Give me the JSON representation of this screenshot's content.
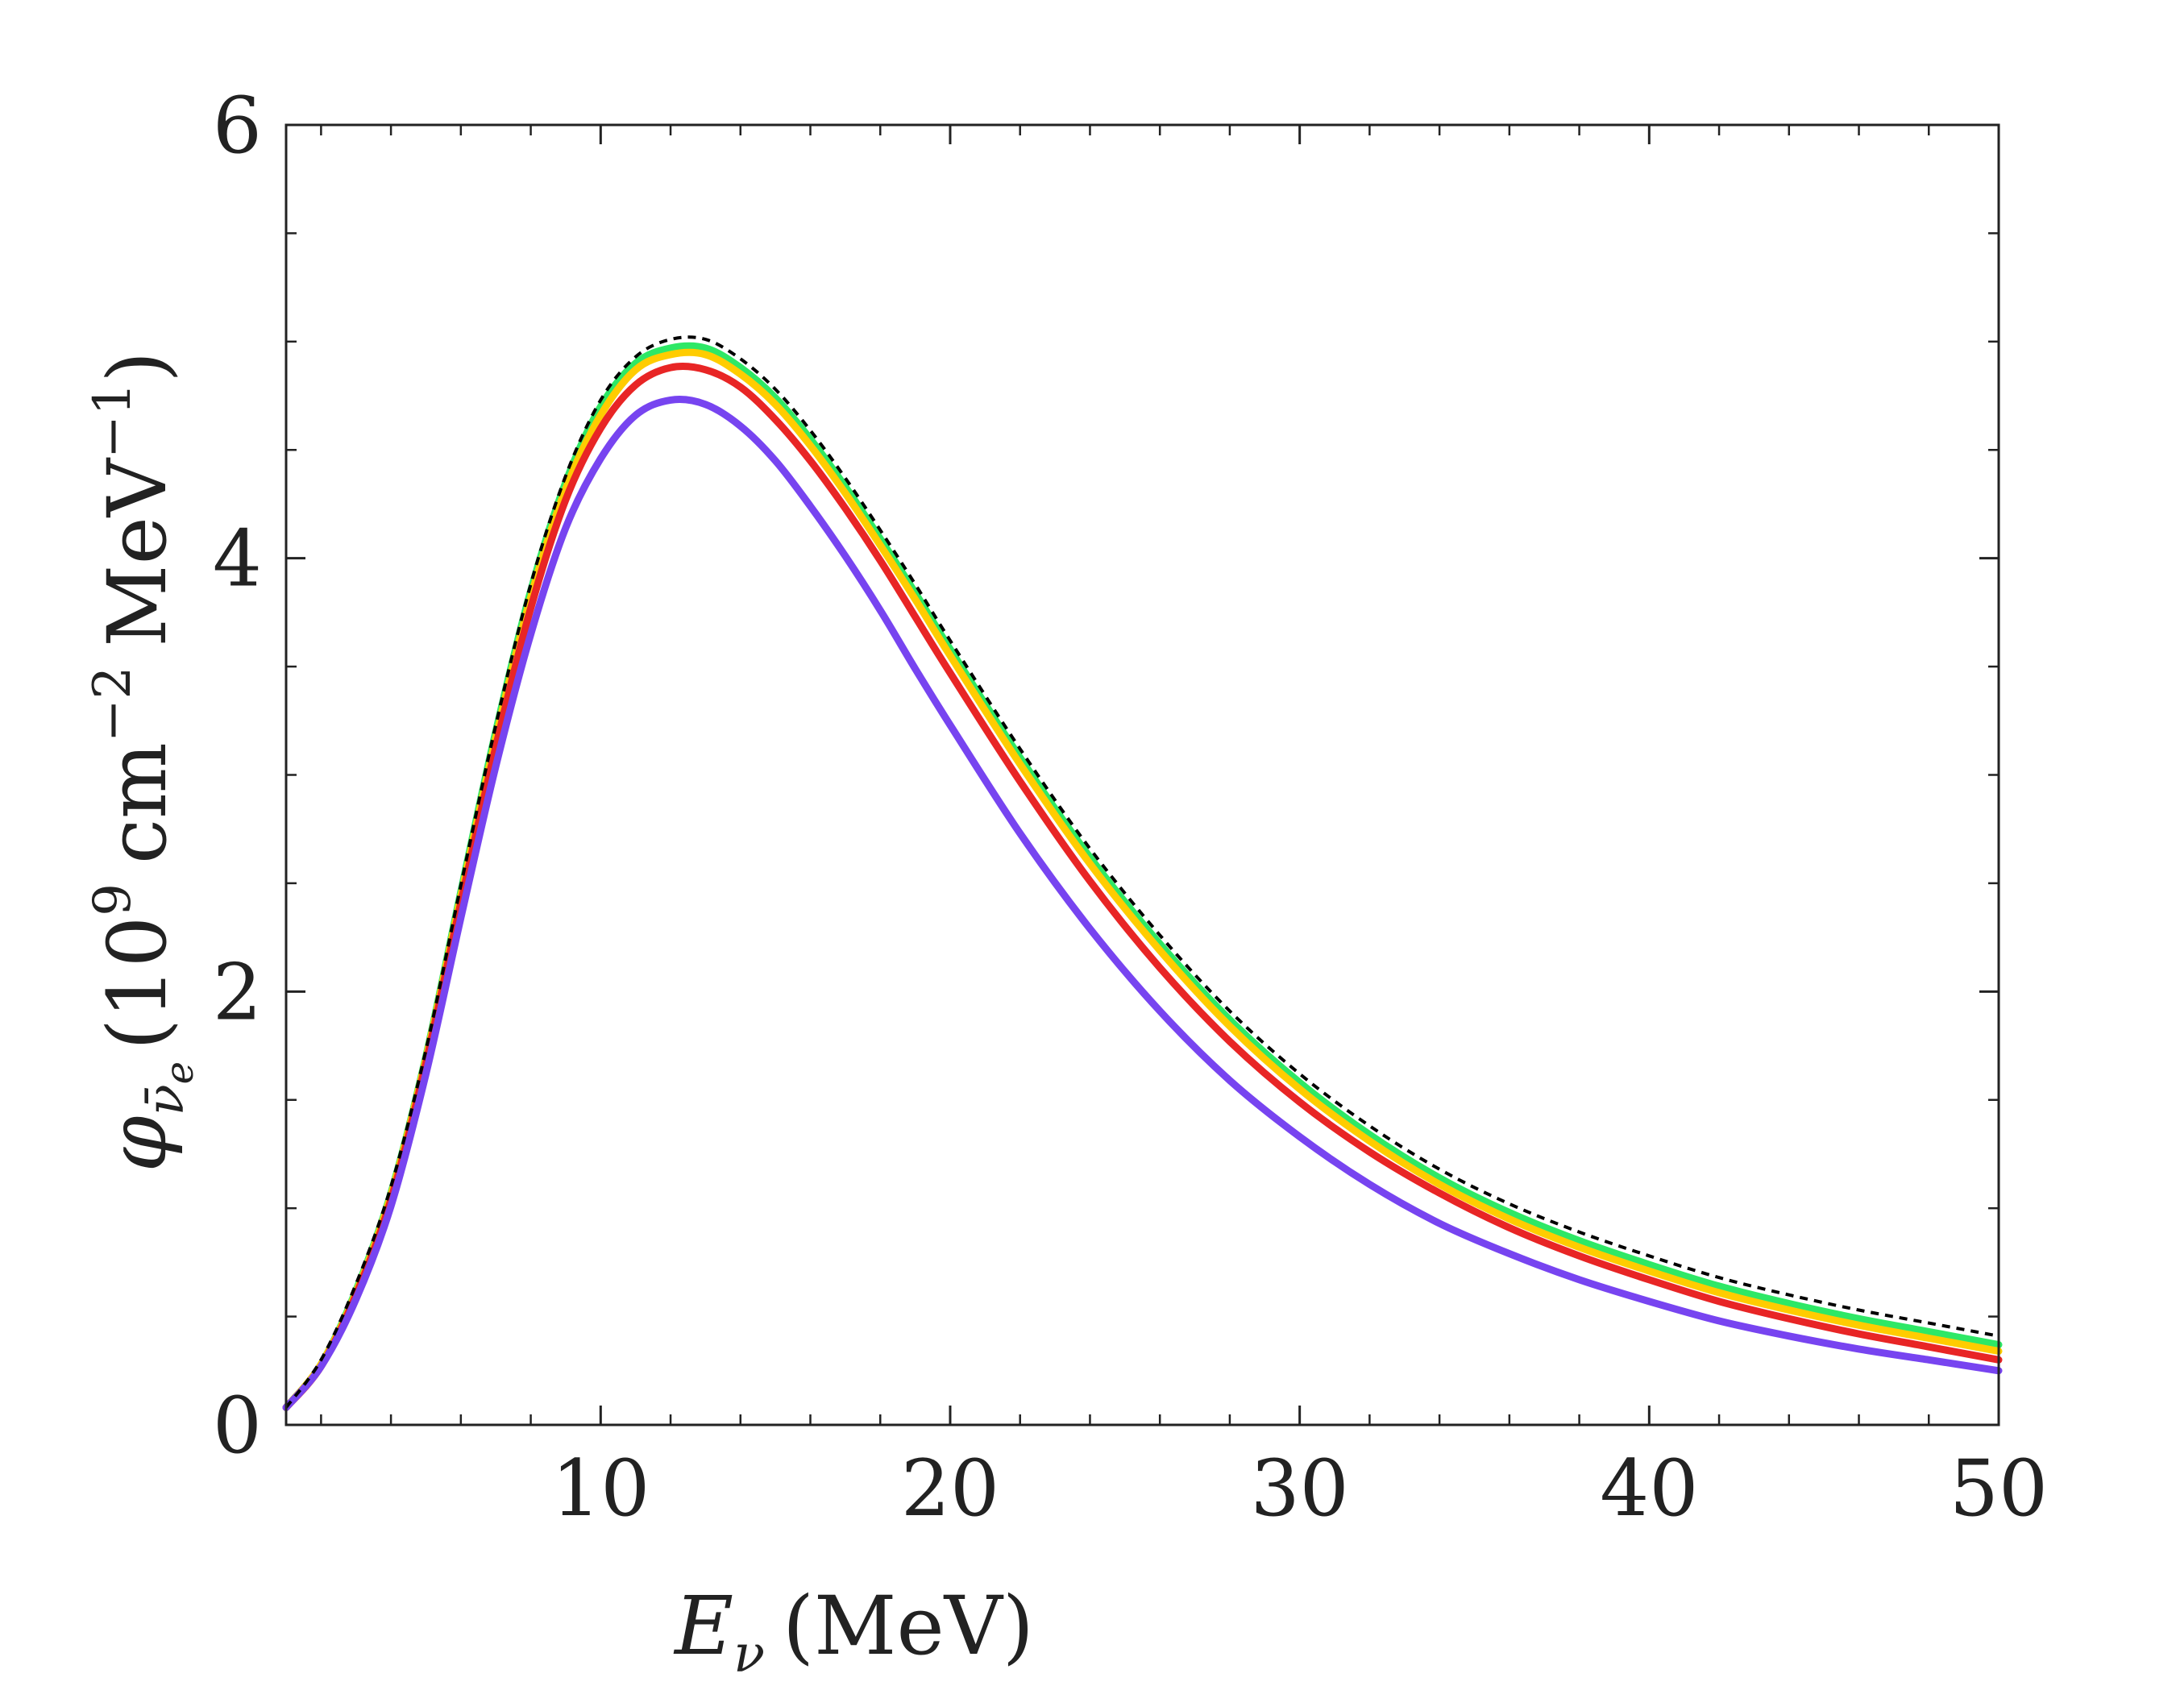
{
  "chart_data": {
    "type": "line",
    "title": "",
    "xlabel": {
      "symbol": "E",
      "subscript": "ν",
      "unit": "(MeV)"
    },
    "ylabel": {
      "symbol": "φ",
      "subscript": "ν̄",
      "subsubscript": "e",
      "open_paren": "(",
      "mantissa": "10",
      "exponent": "9",
      "unit1": "cm",
      "unit1_exponent": "−2",
      "unit2": "MeV",
      "unit2_exponent": "−1",
      "close_paren": ")"
    },
    "xlim": [
      1,
      50
    ],
    "ylim": [
      0,
      6
    ],
    "x_major_ticks": [
      10,
      20,
      30,
      40,
      50
    ],
    "x_tick_labels": [
      "10",
      "20",
      "30",
      "40",
      "50"
    ],
    "x_minor_step": 2,
    "y_major_ticks": [
      0,
      2,
      4,
      6
    ],
    "y_tick_labels": [
      "0",
      "2",
      "4",
      "6"
    ],
    "y_minor_step": 0.5,
    "grid": false,
    "x": [
      1,
      2,
      3,
      4,
      5,
      6,
      7,
      8,
      9,
      10,
      11,
      12,
      13,
      14,
      15,
      16,
      17,
      18,
      19,
      20,
      22,
      24,
      26,
      28,
      30,
      32,
      34,
      36,
      38,
      40,
      42,
      44,
      46,
      48,
      50
    ],
    "series": [
      {
        "name": "green",
        "color": "#2ee866",
        "style": "solid",
        "values": [
          0.08,
          0.28,
          0.62,
          1.07,
          1.7,
          2.46,
          3.2,
          3.85,
          4.35,
          4.7,
          4.9,
          4.97,
          4.97,
          4.88,
          4.74,
          4.55,
          4.33,
          4.09,
          3.84,
          3.58,
          3.08,
          2.62,
          2.22,
          1.87,
          1.58,
          1.34,
          1.14,
          0.98,
          0.85,
          0.74,
          0.64,
          0.56,
          0.49,
          0.43,
          0.37
        ]
      },
      {
        "name": "yellow",
        "color": "#ffcc00",
        "style": "solid",
        "values": [
          0.08,
          0.28,
          0.61,
          1.06,
          1.69,
          2.44,
          3.17,
          3.82,
          4.32,
          4.66,
          4.87,
          4.94,
          4.94,
          4.85,
          4.71,
          4.52,
          4.3,
          4.06,
          3.81,
          3.55,
          3.05,
          2.59,
          2.19,
          1.84,
          1.55,
          1.31,
          1.11,
          0.95,
          0.82,
          0.71,
          0.61,
          0.53,
          0.46,
          0.4,
          0.34
        ]
      },
      {
        "name": "red",
        "color": "#e82525",
        "style": "solid",
        "values": [
          0.08,
          0.27,
          0.6,
          1.04,
          1.67,
          2.41,
          3.13,
          3.77,
          4.27,
          4.6,
          4.8,
          4.88,
          4.87,
          4.79,
          4.64,
          4.45,
          4.23,
          3.99,
          3.73,
          3.47,
          2.97,
          2.51,
          2.11,
          1.77,
          1.49,
          1.26,
          1.07,
          0.91,
          0.78,
          0.67,
          0.57,
          0.49,
          0.42,
          0.36,
          0.3
        ]
      },
      {
        "name": "purple",
        "color": "#7744f0",
        "style": "solid",
        "values": [
          0.08,
          0.27,
          0.58,
          1.01,
          1.62,
          2.34,
          3.04,
          3.65,
          4.14,
          4.46,
          4.66,
          4.73,
          4.71,
          4.61,
          4.45,
          4.24,
          4.01,
          3.76,
          3.49,
          3.23,
          2.73,
          2.29,
          1.91,
          1.59,
          1.33,
          1.11,
          0.93,
          0.79,
          0.67,
          0.57,
          0.48,
          0.41,
          0.35,
          0.3,
          0.25
        ]
      },
      {
        "name": "black-dashed",
        "color": "#000000",
        "style": "dashed",
        "values": [
          0.08,
          0.3,
          0.65,
          1.1,
          1.73,
          2.49,
          3.23,
          3.88,
          4.38,
          4.73,
          4.93,
          5.01,
          5.01,
          4.92,
          4.78,
          4.59,
          4.37,
          4.13,
          3.88,
          3.62,
          3.12,
          2.66,
          2.26,
          1.91,
          1.62,
          1.38,
          1.18,
          1.02,
          0.89,
          0.78,
          0.68,
          0.6,
          0.53,
          0.47,
          0.41
        ]
      }
    ]
  }
}
